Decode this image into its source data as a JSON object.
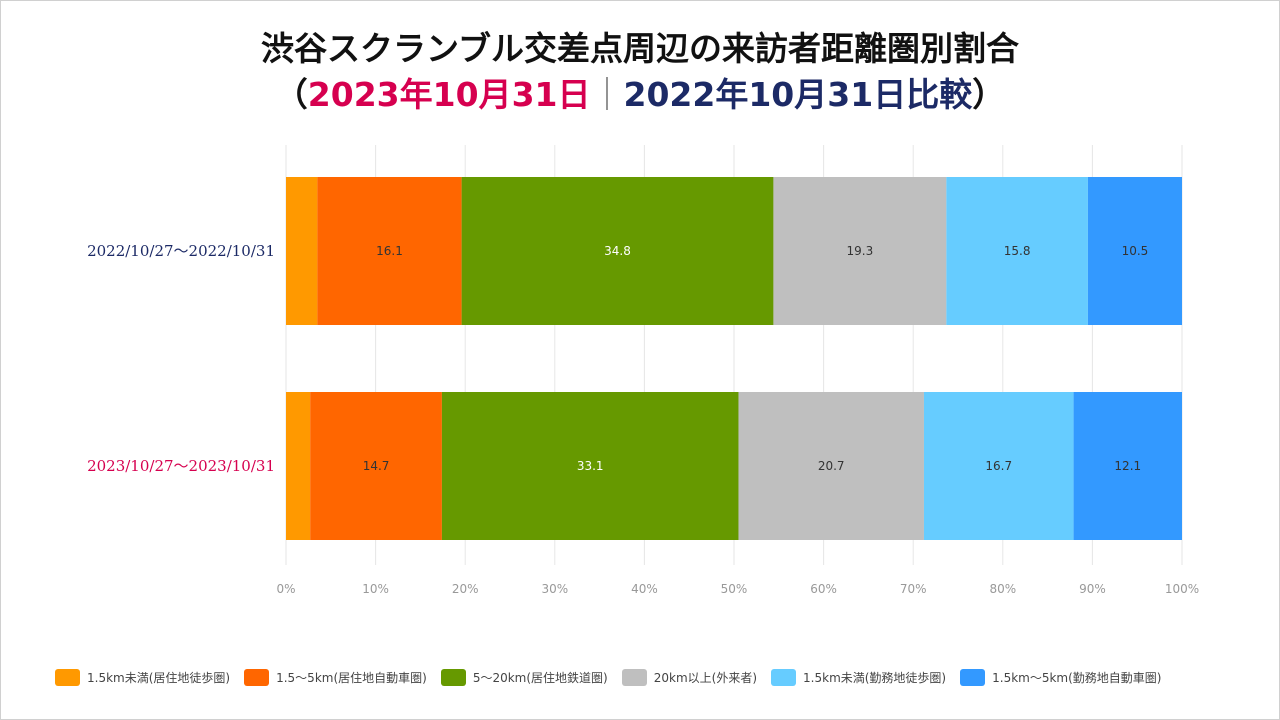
{
  "title": {
    "line1": "渋谷スクランブル交差点周辺の来訪者距離圏別割合",
    "open_paren": "（",
    "date_2023": "2023年10月31日",
    "separator": "｜",
    "date_2022": "2022年10月31日",
    "compare": "比較",
    "close_paren": "）"
  },
  "colors": {
    "title_2023": "#D6004F",
    "title_2022": "#1C2A66"
  },
  "chart_data": {
    "type": "bar",
    "orientation": "horizontal",
    "stacked": true,
    "percent": true,
    "categories": [
      "2022/10/27〜2022/10/31",
      "2023/10/27〜2023/10/31"
    ],
    "category_colors": [
      "#1C2A66",
      "#D6004F"
    ],
    "series": [
      {
        "name": "1.5km未満(居住地徒歩圏)",
        "color": "#FF9900",
        "values": [
          3.5,
          2.7
        ],
        "labels": [
          "",
          ""
        ]
      },
      {
        "name": "1.5～5km(居住地自動車圏)",
        "color": "#FF6600",
        "values": [
          16.1,
          14.7
        ],
        "labels": [
          "16.1",
          "14.7"
        ]
      },
      {
        "name": "5～20km(居住地鉄道圏)",
        "color": "#669900",
        "values": [
          34.8,
          33.1
        ],
        "labels": [
          "34.8",
          "33.1"
        ]
      },
      {
        "name": "20km以上(外来者)",
        "color": "#BFBFBF",
        "values": [
          19.3,
          20.7
        ],
        "labels": [
          "19.3",
          "20.7"
        ]
      },
      {
        "name": "1.5km未満(勤務地徒歩圏)",
        "color": "#66CCFF",
        "values": [
          15.8,
          16.7
        ],
        "labels": [
          "15.8",
          "16.7"
        ]
      },
      {
        "name": "1.5km～5km(勤務地自動車圏)",
        "color": "#3399FF",
        "values": [
          10.5,
          12.1
        ],
        "labels": [
          "10.5",
          "12.1"
        ]
      }
    ],
    "xlim": [
      0,
      100
    ],
    "xticks": [
      "0%",
      "10%",
      "20%",
      "30%",
      "40%",
      "50%",
      "60%",
      "70%",
      "80%",
      "90%",
      "100%"
    ],
    "grid": true,
    "legend": "bottom"
  }
}
